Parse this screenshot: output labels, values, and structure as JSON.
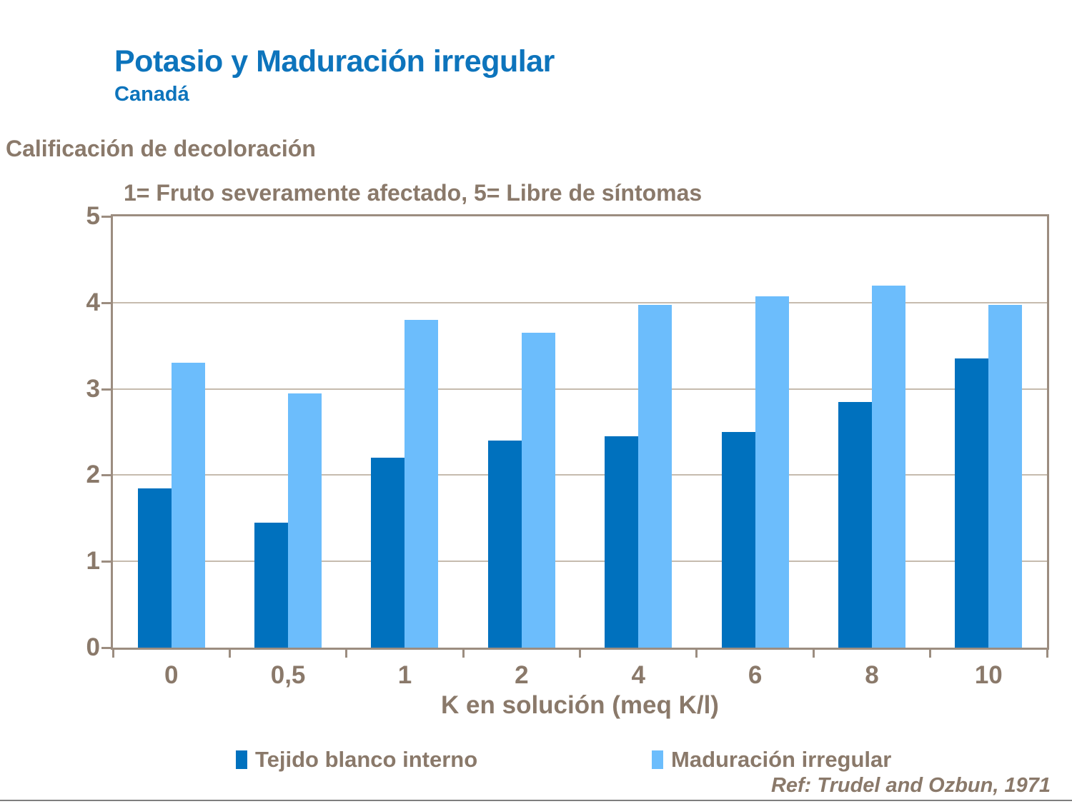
{
  "header": {
    "title": "Potasio y Maduración irregular",
    "subtitle": "Canadá"
  },
  "y_axis_caption": "Calificación de decoloración",
  "scale_note": "1= Fruto severamente afectado, 5= Libre de síntomas",
  "chart_data": {
    "type": "bar",
    "categories": [
      "0",
      "0,5",
      "1",
      "2",
      "4",
      "6",
      "8",
      "10"
    ],
    "series": [
      {
        "name": "Tejido blanco interno",
        "color": "#0071BE",
        "values": [
          1.85,
          1.45,
          2.2,
          2.4,
          2.45,
          2.5,
          2.85,
          3.35
        ]
      },
      {
        "name": "Maduración irregular",
        "color": "#6CBDFC",
        "values": [
          3.3,
          2.95,
          3.8,
          3.65,
          3.97,
          4.07,
          4.2,
          3.97
        ]
      }
    ],
    "xlabel": "K en solución (meq K/l)",
    "ylabel": "Calificación de decoloración",
    "ylim": [
      0,
      5
    ],
    "yticks": [
      0,
      1,
      2,
      3,
      4,
      5
    ],
    "grid": true,
    "legend_position": "bottom"
  },
  "citation": "Ref: Trudel and Ozbun, 1971",
  "palette": {
    "title_blue": "#0D74BC",
    "text_brown": "#8A796A",
    "axis_line": "#9C8D80",
    "gridline": "#C6BBAE",
    "footer_line": "#7E7E7E"
  }
}
